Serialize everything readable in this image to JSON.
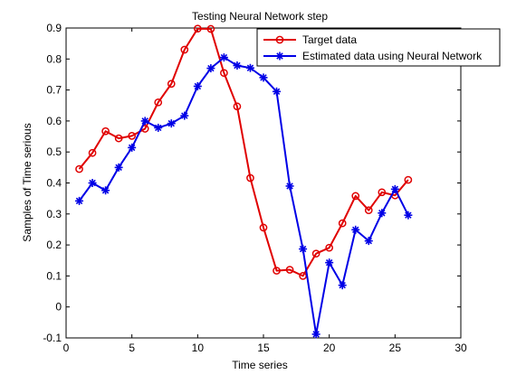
{
  "chart_data": {
    "type": "line",
    "title": "Testing Neural Network step",
    "xlabel": "Time series",
    "ylabel": "Samples of Time serious",
    "xlim": [
      0,
      30
    ],
    "ylim": [
      -0.1,
      0.9
    ],
    "xticks": [
      0,
      5,
      10,
      15,
      20,
      25,
      30
    ],
    "xtick_labels": [
      "0",
      "5",
      "10",
      "15",
      "20",
      "25",
      "30"
    ],
    "yticks": [
      -0.1,
      0,
      0.1,
      0.2,
      0.3,
      0.4,
      0.5,
      0.6,
      0.7,
      0.8,
      0.9
    ],
    "ytick_labels": [
      "-0.1",
      "0",
      "0.1",
      "0.2",
      "0.3",
      "0.4",
      "0.5",
      "0.6",
      "0.7",
      "0.8",
      "0.9"
    ],
    "grid": false,
    "legend_position": "top-right",
    "x": [
      1,
      2,
      3,
      4,
      5,
      6,
      7,
      8,
      9,
      10,
      11,
      12,
      13,
      14,
      15,
      16,
      17,
      18,
      19,
      20,
      21,
      22,
      23,
      24,
      25,
      26
    ],
    "series": [
      {
        "name": "Target data",
        "color": "#e00000",
        "marker": "circle",
        "values": [
          0.445,
          0.497,
          0.567,
          0.544,
          0.552,
          0.575,
          0.66,
          0.72,
          0.83,
          0.898,
          0.897,
          0.755,
          0.647,
          0.416,
          0.256,
          0.117,
          0.12,
          0.1,
          0.172,
          0.191,
          0.27,
          0.358,
          0.312,
          0.37,
          0.36,
          0.41
        ]
      },
      {
        "name": "Estimated data using Neural Network",
        "color": "#0000e6",
        "marker": "star",
        "values": [
          0.342,
          0.4,
          0.376,
          0.45,
          0.514,
          0.6,
          0.578,
          0.592,
          0.617,
          0.712,
          0.77,
          0.805,
          0.779,
          0.771,
          0.74,
          0.695,
          0.39,
          0.187,
          -0.088,
          0.143,
          0.07,
          0.249,
          0.213,
          0.303,
          0.38,
          0.296
        ]
      }
    ]
  }
}
